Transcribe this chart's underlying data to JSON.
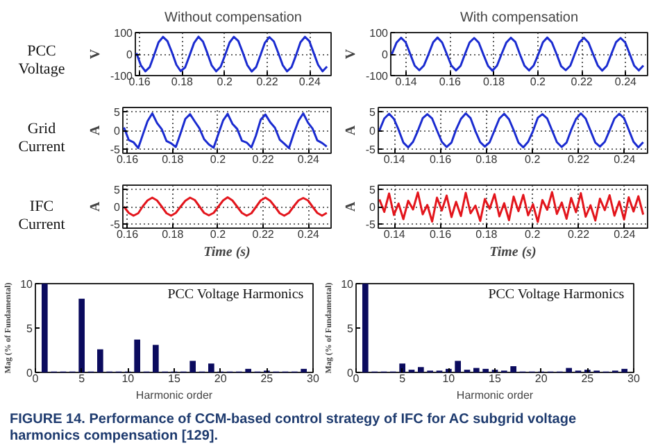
{
  "chart_data": [
    {
      "type": "line",
      "title": "Without compensation",
      "ylabel": "V",
      "annotations": [
        "PCC Voltage"
      ],
      "color": "#1a2bd0",
      "grid": true,
      "marker": "none",
      "line_style": "solid",
      "x": [
        0.1585,
        0.1606,
        0.1627,
        0.1648,
        0.1668,
        0.1689,
        0.171,
        0.1731,
        0.1752,
        0.1773,
        0.1793,
        0.1814,
        0.1835,
        0.1856,
        0.1877,
        0.1898,
        0.1918,
        0.1939,
        0.196,
        0.1981,
        0.2002,
        0.2023,
        0.2043,
        0.2064,
        0.2085,
        0.2106,
        0.2127,
        0.2148,
        0.2168,
        0.2189,
        0.221,
        0.2231,
        0.2252,
        0.2273,
        0.2293,
        0.2314,
        0.2335,
        0.2356,
        0.2377,
        0.2398,
        0.2418,
        0.2439,
        0.246,
        0.2481
      ],
      "values": [
        5,
        -52,
        -80,
        -60,
        -5,
        55,
        80,
        60,
        8,
        -50,
        -79,
        -62,
        -6,
        52,
        81,
        58,
        6,
        -53,
        -80,
        -59,
        -4,
        54,
        80,
        61,
        7,
        -51,
        -81,
        -60,
        -5,
        53,
        79,
        59,
        5,
        -52,
        -80,
        -61,
        -6,
        55,
        80,
        60,
        6,
        -50,
        -80,
        -58
      ],
      "xlim": [
        0.158,
        0.25
      ],
      "xticks": [
        0.16,
        0.18,
        0.2,
        0.22,
        0.24
      ],
      "ylim": [
        -100,
        100
      ],
      "yticks": [
        -100,
        0,
        100
      ]
    },
    {
      "type": "line",
      "title": "With compensation",
      "ylabel": "V",
      "color": "#1a2bd0",
      "grid": true,
      "marker": "none",
      "line_style": "solid",
      "x": [
        0.1335,
        0.1356,
        0.1377,
        0.1398,
        0.1418,
        0.1439,
        0.146,
        0.1481,
        0.1502,
        0.1523,
        0.1543,
        0.1564,
        0.1585,
        0.1606,
        0.1627,
        0.1648,
        0.1668,
        0.1689,
        0.171,
        0.1731,
        0.1752,
        0.1773,
        0.1793,
        0.1814,
        0.1835,
        0.1856,
        0.1877,
        0.1898,
        0.1918,
        0.1939,
        0.196,
        0.1981,
        0.2002,
        0.2023,
        0.2043,
        0.2064,
        0.2085,
        0.2106,
        0.2127,
        0.2148,
        0.2168,
        0.2189,
        0.221,
        0.2231,
        0.2252,
        0.2273,
        0.2293,
        0.2314,
        0.2335,
        0.2356,
        0.2377,
        0.2398,
        0.2418,
        0.2439,
        0.246,
        0.2481
      ],
      "values": [
        0,
        53,
        76,
        55,
        2,
        -54,
        -75,
        -53,
        -1,
        55,
        77,
        54,
        1,
        -53,
        -76,
        -55,
        0,
        54,
        75,
        53,
        -2,
        -55,
        -77,
        -54,
        1,
        53,
        76,
        56,
        0,
        -54,
        -76,
        -53,
        -2,
        55,
        77,
        54,
        1,
        -56,
        -75,
        -54,
        0,
        54,
        76,
        53,
        -1,
        -53,
        -77,
        -55,
        1,
        55,
        75,
        54,
        2,
        -54,
        -76,
        -53
      ],
      "xlim": [
        0.133,
        0.25
      ],
      "xticks": [
        0.14,
        0.16,
        0.18,
        0.2,
        0.22,
        0.24
      ],
      "ylim": [
        -100,
        100
      ],
      "yticks": [
        -100,
        0,
        100
      ]
    },
    {
      "type": "line",
      "ylabel": "A",
      "annotations": [
        "Grid Current"
      ],
      "color": "#1a2bd0",
      "grid": true,
      "marker": "none",
      "line_style": "solid",
      "x": [
        0.1585,
        0.1606,
        0.1627,
        0.1648,
        0.1668,
        0.1689,
        0.171,
        0.1731,
        0.1752,
        0.1773,
        0.1793,
        0.1814,
        0.1835,
        0.1856,
        0.1877,
        0.1898,
        0.1918,
        0.1939,
        0.196,
        0.1981,
        0.2002,
        0.2023,
        0.2043,
        0.2064,
        0.2085,
        0.2106,
        0.2127,
        0.2148,
        0.2168,
        0.2189,
        0.221,
        0.2231,
        0.2252,
        0.2273,
        0.2293,
        0.2314,
        0.2335,
        0.2356,
        0.2377,
        0.2398,
        0.2418,
        0.2439,
        0.246,
        0.2481
      ],
      "values": [
        0.8,
        -2.6,
        -3.2,
        -4.8,
        -1.2,
        2.5,
        4.6,
        2.0,
        0.3,
        -2.9,
        -3.5,
        -4.5,
        -0.8,
        3.1,
        4.4,
        2.4,
        0.6,
        -2.4,
        -3.8,
        -4.7,
        -1.0,
        2.7,
        4.5,
        1.8,
        0.4,
        -2.8,
        -3.3,
        -4.6,
        -1.4,
        2.9,
        4.3,
        2.2,
        0.7,
        -2.5,
        -3.6,
        -4.8,
        -0.9,
        2.6,
        4.6,
        2.1,
        0.5,
        -2.7,
        -3.4,
        -4.4
      ],
      "xlim": [
        0.158,
        0.25
      ],
      "xticks": [
        0.16,
        0.18,
        0.2,
        0.22,
        0.24
      ],
      "ylim": [
        -6.2,
        6.2
      ],
      "yticks": [
        -5,
        0,
        5
      ]
    },
    {
      "type": "line",
      "ylabel": "A",
      "color": "#1a2bd0",
      "grid": true,
      "marker": "none",
      "line_style": "solid",
      "x": [
        0.1335,
        0.1356,
        0.1377,
        0.1398,
        0.1418,
        0.1439,
        0.146,
        0.1481,
        0.1502,
        0.1523,
        0.1543,
        0.1564,
        0.1585,
        0.1606,
        0.1627,
        0.1648,
        0.1668,
        0.1689,
        0.171,
        0.1731,
        0.1752,
        0.1773,
        0.1793,
        0.1814,
        0.1835,
        0.1856,
        0.1877,
        0.1898,
        0.1918,
        0.1939,
        0.196,
        0.1981,
        0.2002,
        0.2023,
        0.2043,
        0.2064,
        0.2085,
        0.2106,
        0.2127,
        0.2148,
        0.2168,
        0.2189,
        0.221,
        0.2231,
        0.2252,
        0.2273,
        0.2293,
        0.2314,
        0.2335,
        0.2356,
        0.2377,
        0.2398,
        0.2418,
        0.2439,
        0.246,
        0.2481
      ],
      "values": [
        0,
        3.2,
        4.5,
        3.1,
        0.2,
        -3.3,
        -4.6,
        -3.1,
        -0.1,
        3.3,
        4.4,
        3.2,
        0,
        -3.1,
        -4.5,
        -3.3,
        0.2,
        3.1,
        4.6,
        3.3,
        -0.2,
        -3.2,
        -4.4,
        -3.2,
        0,
        3.2,
        4.5,
        3.0,
        0.1,
        -3.3,
        -4.6,
        -3.1,
        -0.2,
        3.4,
        4.4,
        3.2,
        0,
        -3.2,
        -4.5,
        -3.3,
        0.1,
        3.1,
        4.6,
        3.2,
        -0.1,
        -3.3,
        -4.4,
        -3.1,
        0,
        3.2,
        4.5,
        3.3,
        0.2,
        -3.1,
        -4.6,
        -3.2
      ],
      "xlim": [
        0.133,
        0.25
      ],
      "xticks": [
        0.14,
        0.16,
        0.18,
        0.2,
        0.22,
        0.24
      ],
      "ylim": [
        -6.2,
        6.2
      ],
      "yticks": [
        -5,
        0,
        5
      ]
    },
    {
      "type": "line",
      "ylabel": "A",
      "xlabel": "Time (s)",
      "annotations": [
        "IFC Current"
      ],
      "color": "#e3151c",
      "grid": true,
      "marker": "none",
      "line_style": "solid",
      "x": [
        0.1585,
        0.1606,
        0.1627,
        0.1648,
        0.1668,
        0.1689,
        0.171,
        0.1731,
        0.1752,
        0.1773,
        0.1793,
        0.1814,
        0.1835,
        0.1856,
        0.1877,
        0.1898,
        0.1918,
        0.1939,
        0.196,
        0.1981,
        0.2002,
        0.2023,
        0.2043,
        0.2064,
        0.2085,
        0.2106,
        0.2127,
        0.2148,
        0.2168,
        0.2189,
        0.221,
        0.2231,
        0.2252,
        0.2273,
        0.2293,
        0.2314,
        0.2335,
        0.2356,
        0.2377,
        0.2398,
        0.2418,
        0.2439,
        0.246,
        0.2481
      ],
      "values": [
        0,
        -1.8,
        -2.6,
        -1.9,
        0.1,
        1.8,
        2.6,
        1.8,
        0,
        -1.9,
        -2.6,
        -1.8,
        0,
        1.7,
        2.6,
        1.9,
        0.1,
        -1.8,
        -2.5,
        -1.8,
        0,
        1.8,
        2.7,
        1.8,
        0,
        -1.8,
        -2.6,
        -1.9,
        -0.1,
        1.8,
        2.6,
        1.7,
        0,
        -1.9,
        -2.6,
        -1.8,
        0.1,
        1.8,
        2.5,
        1.8,
        0,
        -1.8,
        -2.6,
        -1.8
      ],
      "xlim": [
        0.158,
        0.25
      ],
      "xticks": [
        0.16,
        0.18,
        0.2,
        0.22,
        0.24
      ],
      "ylim": [
        -6.2,
        6.2
      ],
      "yticks": [
        -5,
        0,
        5
      ]
    },
    {
      "type": "line",
      "ylabel": "A",
      "xlabel": "Time (s)",
      "color": "#e3151c",
      "grid": true,
      "marker": "none",
      "line_style": "solid",
      "x": [
        0.1335,
        0.1356,
        0.1377,
        0.1398,
        0.1418,
        0.1439,
        0.146,
        0.1481,
        0.1502,
        0.1523,
        0.1543,
        0.1564,
        0.1585,
        0.1606,
        0.1627,
        0.1648,
        0.1668,
        0.1689,
        0.171,
        0.1731,
        0.1752,
        0.1773,
        0.1793,
        0.1814,
        0.1835,
        0.1856,
        0.1877,
        0.1898,
        0.1918,
        0.1939,
        0.196,
        0.1981,
        0.2002,
        0.2023,
        0.2043,
        0.2064,
        0.2085,
        0.2106,
        0.2127,
        0.2148,
        0.2168,
        0.2189,
        0.221,
        0.2231,
        0.2252,
        0.2273,
        0.2293,
        0.2314,
        0.2335,
        0.2356,
        0.2377,
        0.2398,
        0.2418,
        0.2439,
        0.246,
        0.2481
      ],
      "values": [
        2.1,
        -1.5,
        3.8,
        -2.4,
        0.9,
        -3.6,
        1.7,
        -0.8,
        4.1,
        -2.2,
        0.5,
        -4.3,
        2.6,
        -1.1,
        3.2,
        -3.0,
        1.4,
        -2.7,
        4.0,
        -1.9,
        0.3,
        -4.1,
        2.2,
        -0.6,
        3.6,
        -2.8,
        1.0,
        -3.9,
        2.9,
        -1.3,
        3.4,
        -2.5,
        0.7,
        -4.4,
        1.9,
        -0.9,
        4.2,
        -2.1,
        1.2,
        -3.5,
        2.5,
        -1.6,
        3.9,
        -2.9,
        0.4,
        -4.0,
        2.3,
        -1.0,
        3.3,
        -2.6,
        1.5,
        -3.7,
        2.7,
        -1.4,
        3.0,
        -2.3
      ],
      "xlim": [
        0.133,
        0.25
      ],
      "xticks": [
        0.14,
        0.16,
        0.18,
        0.2,
        0.22,
        0.24
      ],
      "ylim": [
        -6.2,
        6.2
      ],
      "yticks": [
        -5,
        0,
        5
      ]
    },
    {
      "type": "bar",
      "ylabel": "Mag (% of Fundamental)",
      "xlabel": "Harmonic order",
      "annotations": [
        "PCC Voltage Harmonics"
      ],
      "color": "#0b0b5e",
      "grid": false,
      "x": [
        0,
        1,
        2,
        3,
        4,
        5,
        6,
        7,
        8,
        9,
        10,
        11,
        12,
        13,
        14,
        15,
        16,
        17,
        18,
        19,
        20,
        21,
        22,
        23,
        24,
        25,
        26,
        27,
        28,
        29
      ],
      "values": [
        0,
        10,
        0.1,
        0.1,
        0.1,
        8.3,
        0.1,
        2.6,
        0.1,
        0.1,
        0.1,
        3.7,
        0.1,
        3.1,
        0.1,
        0.1,
        0.1,
        1.3,
        0.1,
        1.0,
        0.1,
        0.1,
        0.1,
        0.4,
        0.1,
        0.2,
        0.1,
        0.1,
        0.1,
        0.4
      ],
      "xlim": [
        0,
        30
      ],
      "xticks": [
        0,
        5,
        10,
        15,
        20,
        25,
        30
      ],
      "ylim": [
        0,
        10
      ],
      "yticks": [
        0,
        5,
        10
      ]
    },
    {
      "type": "bar",
      "ylabel": "Mag (% of Fundamental)",
      "xlabel": "Harmonic order",
      "annotations": [
        "PCC Voltage Harmonics",
        "FIGURE 14. Performance of CCM-based control strategy of IFC for AC subgrid voltage harmonics compensation [129]."
      ],
      "color": "#0b0b5e",
      "grid": false,
      "x": [
        0,
        1,
        2,
        3,
        4,
        5,
        6,
        7,
        8,
        9,
        10,
        11,
        12,
        13,
        14,
        15,
        16,
        17,
        18,
        19,
        20,
        21,
        22,
        23,
        24,
        25,
        26,
        27,
        28,
        29
      ],
      "values": [
        0,
        10,
        0.1,
        0.1,
        0.1,
        1.0,
        0.3,
        0.6,
        0.2,
        0.2,
        0.4,
        1.3,
        0.3,
        0.5,
        0.4,
        0.3,
        0.2,
        0.7,
        0.1,
        0.1,
        0.1,
        0.1,
        0.1,
        0.5,
        0.2,
        0.3,
        0.2,
        0.1,
        0.2,
        0.4
      ],
      "xlim": [
        0,
        30
      ],
      "xticks": [
        0,
        5,
        10,
        15,
        20,
        25,
        30
      ],
      "ylim": [
        0,
        10
      ],
      "yticks": [
        0,
        5,
        10
      ]
    }
  ]
}
